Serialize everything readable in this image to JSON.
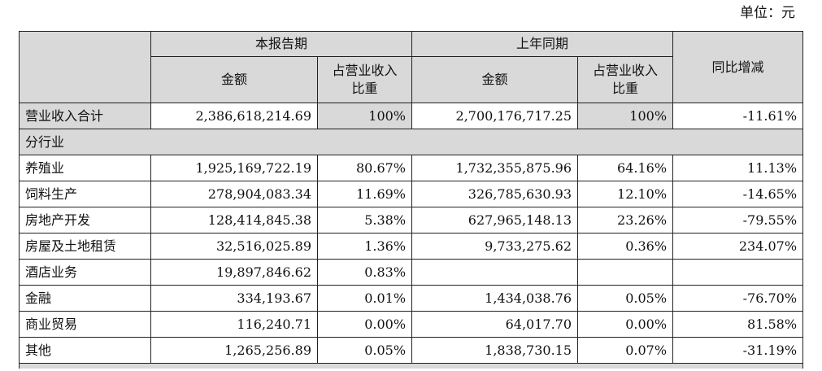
{
  "unit_label": "单位：元",
  "header": {
    "current_period": "本报告期",
    "prior_period": "上年同期",
    "yoy_change": "同比增减",
    "amount": "金额",
    "share_line1": "占营业收入",
    "share_line2": "比重"
  },
  "total_row": {
    "label": "营业收入合计",
    "cur_amount": "2,386,618,214.69",
    "cur_share": "100%",
    "prev_amount": "2,700,176,717.25",
    "prev_share": "100%",
    "yoy": "-11.61%"
  },
  "section_label": "分行业",
  "rows": [
    {
      "label": "养殖业",
      "cur_amount": "1,925,169,722.19",
      "cur_share": "80.67%",
      "prev_amount": "1,732,355,875.96",
      "prev_share": "64.16%",
      "yoy": "11.13%"
    },
    {
      "label": "饲料生产",
      "cur_amount": "278,904,083.34",
      "cur_share": "11.69%",
      "prev_amount": "326,785,630.93",
      "prev_share": "12.10%",
      "yoy": "-14.65%"
    },
    {
      "label": "房地产开发",
      "cur_amount": "128,414,845.38",
      "cur_share": "5.38%",
      "prev_amount": "627,965,148.13",
      "prev_share": "23.26%",
      "yoy": "-79.55%"
    },
    {
      "label": "房屋及土地租赁",
      "cur_amount": "32,516,025.89",
      "cur_share": "1.36%",
      "prev_amount": "9,733,275.62",
      "prev_share": "0.36%",
      "yoy": "234.07%"
    },
    {
      "label": "酒店业务",
      "cur_amount": "19,897,846.62",
      "cur_share": "0.83%",
      "prev_amount": "",
      "prev_share": "",
      "yoy": ""
    },
    {
      "label": "金融",
      "cur_amount": "334,193.67",
      "cur_share": "0.01%",
      "prev_amount": "1,434,038.76",
      "prev_share": "0.05%",
      "yoy": "-76.70%"
    },
    {
      "label": "商业贸易",
      "cur_amount": "116,240.71",
      "cur_share": "0.00%",
      "prev_amount": "64,017.70",
      "prev_share": "0.00%",
      "yoy": "81.58%"
    },
    {
      "label": "其他",
      "cur_amount": "1,265,256.89",
      "cur_share": "0.05%",
      "prev_amount": "1,838,730.15",
      "prev_share": "0.07%",
      "yoy": "-31.19%"
    }
  ]
}
